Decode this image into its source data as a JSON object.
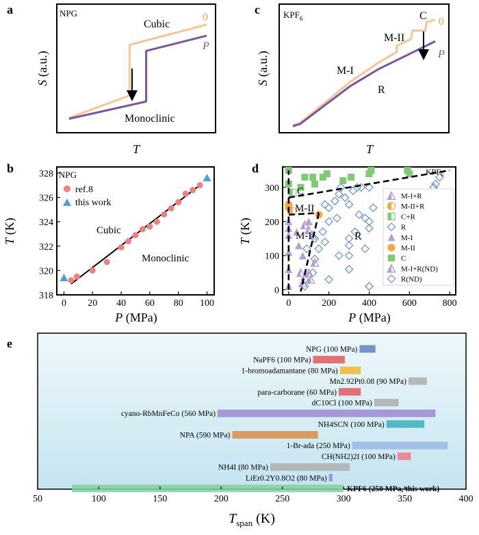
{
  "colors": {
    "curve_zero": "#f5c592",
    "curve_p": "#7b54a0",
    "ref_points": "#f08080",
    "this_work": "#5b9bd5",
    "phase_mi": "#a78fce",
    "phase_mii": "#f5a742",
    "phase_c": "#7fca72",
    "phase_r": "#6f95d0",
    "panel_e_bg_top": "#eef8fa",
    "panel_e_bg_bottom": "#c4e4f0"
  },
  "chart_data": [
    {
      "panel": "a",
      "type": "line",
      "sample": "NPG",
      "xlabel": "T",
      "ylabel": "S (a.u.)",
      "series": [
        {
          "name": "0",
          "x": [
            0.0,
            0.44,
            0.44,
            1.0
          ],
          "y": [
            0.06,
            0.28,
            0.78,
            0.98
          ]
        },
        {
          "name": "P",
          "x": [
            0.0,
            0.56,
            0.56,
            1.0
          ],
          "y": [
            0.05,
            0.22,
            0.72,
            0.87
          ]
        }
      ],
      "annotations": [
        "Cubic",
        "Monoclinic"
      ]
    },
    {
      "panel": "c",
      "type": "line",
      "sample": "KPF6",
      "xlabel": "T",
      "ylabel": "S (a.u.)",
      "series": [
        {
          "name": "0",
          "x": [
            0.0,
            0.05,
            0.2,
            0.4,
            0.6,
            0.73,
            0.73,
            0.83,
            0.84,
            0.93,
            0.94,
            1.0
          ],
          "y": [
            0.02,
            0.04,
            0.2,
            0.42,
            0.6,
            0.7,
            0.76,
            0.82,
            0.9,
            0.9,
            0.98,
            1.0
          ]
        },
        {
          "name": "P",
          "x": [
            0.0,
            0.05,
            0.2,
            0.4,
            0.6,
            0.8,
            1.0
          ],
          "y": [
            0.01,
            0.03,
            0.18,
            0.38,
            0.54,
            0.67,
            0.8
          ]
        }
      ],
      "annotations": [
        "C",
        "M-II",
        "M-I",
        "R"
      ]
    },
    {
      "panel": "b",
      "type": "scatter",
      "sample": "NPG",
      "xlabel": "P (MPa)",
      "ylabel": "T (K)",
      "xlim": [
        -5,
        105
      ],
      "ylim": [
        318,
        328.5
      ],
      "xticks": [
        0,
        20,
        40,
        60,
        80,
        100
      ],
      "yticks": [
        318,
        320,
        322,
        324,
        326,
        328
      ],
      "series": [
        {
          "name": "ref.8",
          "marker": "circle",
          "x": [
            5,
            9,
            20,
            30,
            40,
            45,
            50,
            55,
            60,
            65,
            70,
            75,
            80,
            85,
            90,
            95
          ],
          "y": [
            319.2,
            319.5,
            320.0,
            320.7,
            321.9,
            322.4,
            322.9,
            323.4,
            323.6,
            324.0,
            324.6,
            325.1,
            325.6,
            326.3,
            326.6,
            327.0
          ]
        },
        {
          "name": "this work",
          "marker": "triangle",
          "x": [
            0,
            100
          ],
          "y": [
            319.4,
            327.6
          ]
        }
      ],
      "fit_line": {
        "x": [
          5,
          95
        ],
        "y": [
          318.9,
          327.0
        ]
      },
      "annotations": [
        "Cubic",
        "Monoclinic"
      ]
    },
    {
      "panel": "d",
      "type": "scatter",
      "sample": "KPF6",
      "xlabel": "P (MPa)",
      "ylabel": "T (K)",
      "xlim": [
        -30,
        830
      ],
      "ylim": [
        -15,
        360
      ],
      "xticks": [
        0,
        200,
        400,
        600,
        800
      ],
      "yticks": [
        0,
        100,
        200,
        300
      ],
      "regions": [
        "C",
        "M-II",
        "M-I",
        "R"
      ],
      "series": [
        {
          "name": "M-I+R",
          "marker": "triangle-half",
          "x": [
            80,
            100,
            120,
            60,
            110
          ],
          "y": [
            190,
            175,
            160,
            50,
            30
          ]
        },
        {
          "name": "M-II+R",
          "marker": "circle-half",
          "x": [
            20
          ],
          "y": [
            230
          ]
        },
        {
          "name": "C+R",
          "marker": "square-half",
          "x": [
            20
          ],
          "y": [
            285
          ]
        },
        {
          "name": "R",
          "marker": "diamond-open",
          "x": [
            80,
            120,
            150,
            170,
            200,
            230,
            250,
            260,
            280,
            300,
            320,
            340,
            360,
            380,
            400,
            420,
            200,
            240,
            300,
            350,
            400,
            300,
            330,
            400,
            730,
            750,
            130,
            180,
            300,
            380,
            300,
            200,
            90,
            130,
            180,
            400
          ],
          "y": [
            10,
            50,
            120,
            170,
            240,
            260,
            280,
            300,
            270,
            250,
            290,
            300,
            300,
            210,
            300,
            240,
            200,
            210,
            130,
            220,
            200,
            150,
            170,
            180,
            310,
            330,
            90,
            140,
            100,
            120,
            60,
            30,
            120,
            150,
            250,
            10
          ]
        },
        {
          "name": "M-I",
          "marker": "triangle",
          "x": [
            0,
            0,
            0,
            0,
            0,
            0,
            40,
            50,
            70,
            100
          ],
          "y": [
            10,
            60,
            110,
            160,
            200,
            180,
            170,
            130,
            100,
            200
          ]
        },
        {
          "name": "M-II",
          "marker": "circle",
          "x": [
            0,
            0,
            150
          ],
          "y": [
            240,
            250,
            220
          ]
        },
        {
          "name": "C",
          "marker": "square",
          "x": [
            0,
            0,
            60,
            80,
            120,
            130,
            170,
            190,
            270,
            310,
            400,
            410,
            590,
            600
          ],
          "y": [
            350,
            310,
            300,
            330,
            330,
            310,
            330,
            340,
            320,
            330,
            340,
            350,
            350,
            340
          ]
        },
        {
          "name": "M-I+R(ND)",
          "marker": "triangle-half",
          "x": [
            70,
            130,
            100
          ],
          "y": [
            20,
            80,
            50
          ]
        },
        {
          "name": "R(ND)",
          "marker": "diamond-open",
          "x": [
            400,
            720,
            80,
            250
          ],
          "y": [
            10,
            300,
            30,
            100
          ]
        }
      ],
      "boundaries": [
        {
          "x": [
            0,
            800
          ],
          "y": [
            270,
            350
          ]
        },
        {
          "x": [
            0,
            150
          ],
          "y": [
            220,
            225
          ]
        },
        {
          "x": [
            150,
            60
          ],
          "y": [
            225,
            -5
          ]
        },
        {
          "x": [
            0,
            0
          ],
          "y": [
            0,
            350
          ]
        }
      ]
    },
    {
      "panel": "e",
      "type": "bar",
      "orientation": "horizontal-range",
      "xlabel": "T_span (K)",
      "xlim": [
        50,
        400
      ],
      "xticks": [
        50,
        100,
        150,
        200,
        250,
        300,
        350,
        400
      ],
      "bars": [
        {
          "label": "NPG (100 MPa)",
          "start": 313,
          "end": 326,
          "color": "#5b84c4"
        },
        {
          "label": "NaPF6 (100 MPa)",
          "start": 275,
          "end": 301,
          "color": "#e05a5a"
        },
        {
          "label": "1-bromoadamantane (80 MPa)",
          "start": 297,
          "end": 314,
          "color": "#f0b52e"
        },
        {
          "label": "Mn2.92Pt0.08 (90 MPa)",
          "start": 353,
          "end": 368,
          "color": "#aeaeae"
        },
        {
          "label": "para-carborane (60 MPa)",
          "start": 296,
          "end": 314,
          "color": "#e05a5a"
        },
        {
          "label": "dC10Cl (100 MPa)",
          "start": 325,
          "end": 345,
          "color": "#aeaeae"
        },
        {
          "label": "cyano-RbMnFeCo (560 MPa)",
          "start": 197,
          "end": 375,
          "color": "#9b88d4"
        },
        {
          "label": "NH4SCN (100 MPa)",
          "start": 335,
          "end": 366,
          "color": "#3ab0b8"
        },
        {
          "label": "NPA (590 MPa)",
          "start": 209,
          "end": 279,
          "color": "#d88e48"
        },
        {
          "label": "1-Br-ada (250 MPa)",
          "start": 307,
          "end": 385,
          "color": "#9ab8e0"
        },
        {
          "label": "CH(NH2)2I (100 MPa)",
          "start": 344,
          "end": 355,
          "color": "#f07a8a"
        },
        {
          "label": "NH4I (80 MPa)",
          "start": 240,
          "end": 305,
          "color": "#aeaeae"
        },
        {
          "label": "LiEr0.2Y0.8O2 (80 MPa)",
          "start": 288,
          "end": 291,
          "color": "#9b88d4"
        },
        {
          "label": "KPF6 (250 MPa, this work)",
          "start": 78,
          "end": 300,
          "color": "#7fd4a0"
        }
      ]
    }
  ],
  "panel_letters": {
    "a": "a",
    "b": "b",
    "c": "c",
    "d": "d",
    "e": "e"
  },
  "text": {
    "a_sample": "NPG",
    "a_cubic": "Cubic",
    "a_mono": "Monoclinic",
    "a_zero": "0",
    "a_p": "P",
    "a_ylabel_s": "S",
    "a_ylabel_unit": "(a.u.)",
    "a_xlabel": "T",
    "c_sample": "KPF",
    "c_sample_sub": "6",
    "c_c": "C",
    "c_zero": "0",
    "c_mii": "M-II",
    "c_mi": "M-I",
    "c_r": "R",
    "c_p": "P",
    "c_ylabel_s": "S",
    "c_ylabel_unit": "(a.u.)",
    "c_xlabel": "T",
    "b_sample": "NPG",
    "b_legend_ref": "ref.8",
    "b_legend_this": "this work",
    "b_cubic": "Cubic",
    "b_mono": "Monoclinic",
    "b_xlabel_p": "P",
    "b_xlabel_unit": "(MPa)",
    "b_ylabel_t": "T",
    "b_ylabel_unit": "(K)",
    "d_sample": "KPF",
    "d_sample_sub": "6",
    "d_c": "C",
    "d_mii": "M-II",
    "d_mi": "M-I",
    "d_r": "R",
    "d_xlabel_p": "P",
    "d_xlabel_unit": "(MPa)",
    "d_ylabel_t": "T",
    "d_ylabel_unit": "(K)",
    "e_xlabel_t": "T",
    "e_xlabel_sub": "span",
    "e_xlabel_unit": "(K)"
  },
  "legend_d": [
    "M-I+R",
    "M-II+R",
    "C+R",
    "R",
    "M-I",
    "M-II",
    "C",
    "M-I+R(ND)",
    "R(ND)"
  ]
}
